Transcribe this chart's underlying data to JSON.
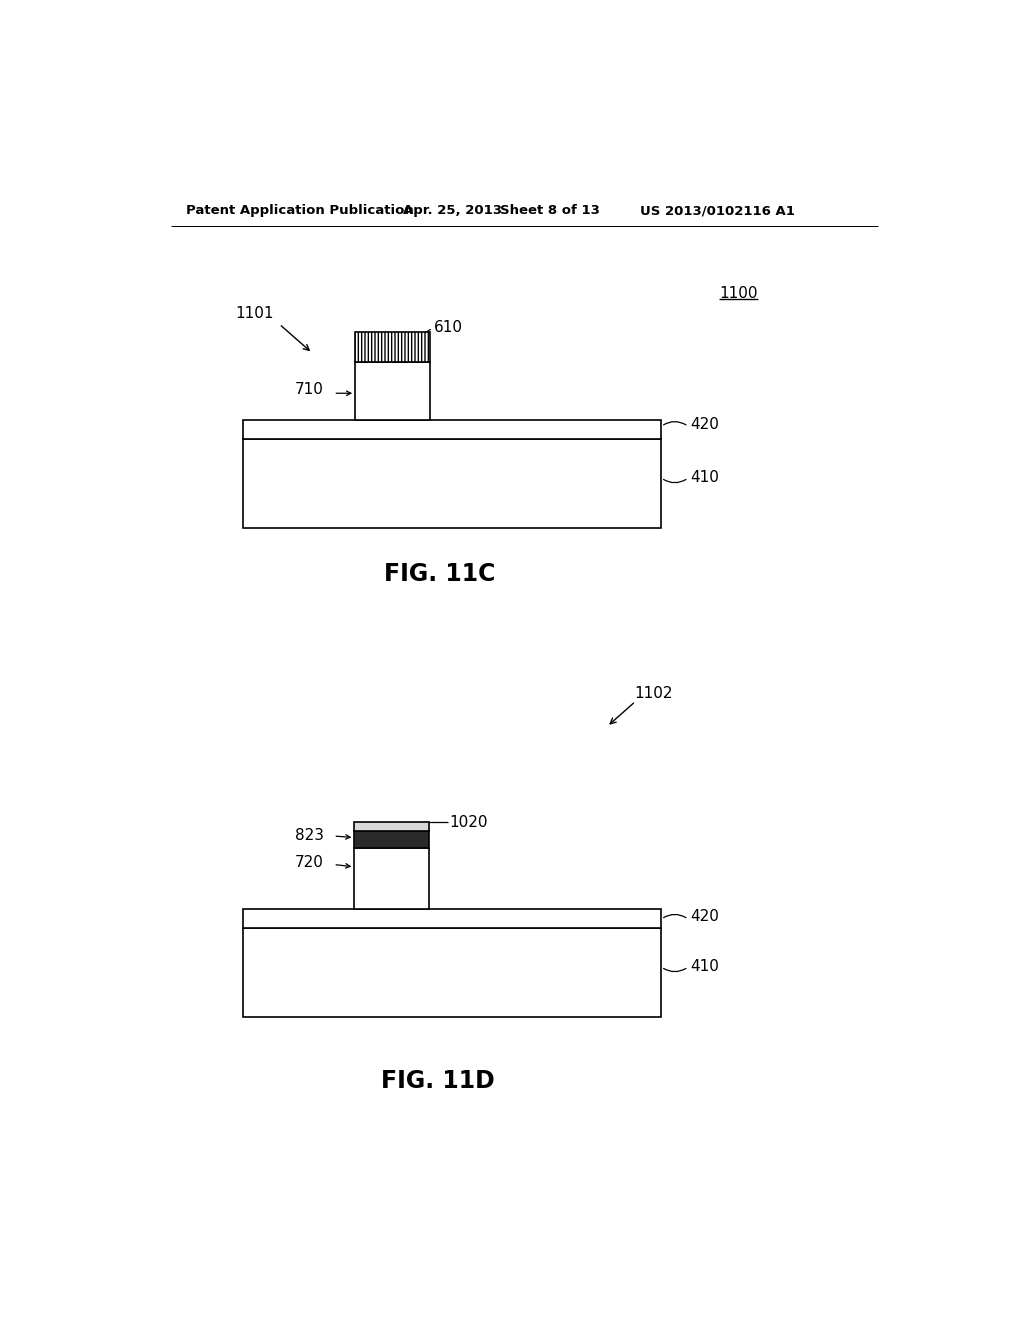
{
  "background_color": "#ffffff",
  "header_text": "Patent Application Publication",
  "header_date": "Apr. 25, 2013",
  "header_sheet": "Sheet 8 of 13",
  "header_patent": "US 2013/0102116 A1",
  "fig11c_label": "FIG. 11C",
  "fig11d_label": "FIG. 11D",
  "label_1100": "1100",
  "label_1101": "1101",
  "label_1102": "1102",
  "label_610": "610",
  "label_710": "710",
  "label_420_1": "420",
  "label_410_1": "410",
  "label_823": "823",
  "label_720": "720",
  "label_1020": "1020",
  "label_420_2": "420",
  "label_410_2": "410"
}
